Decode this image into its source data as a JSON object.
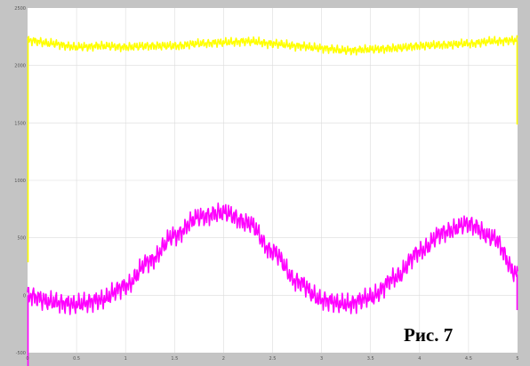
{
  "caption": "Рис. 7",
  "colors": {
    "frame": "#c4c4c4",
    "plot_background": "#ffffff",
    "grid": "#dcdcdc",
    "series_1": "#ffff00",
    "series_2": "#ff00ff",
    "tick_text": "#555555"
  },
  "chart_data": {
    "type": "line",
    "grid": true,
    "x_ticks": [
      "0",
      "0.5",
      "1",
      "1.5",
      "2",
      "2.5",
      "3",
      "3.5",
      "4",
      "4.5",
      "5"
    ],
    "y_ticks": [
      "-500",
      "0",
      "500",
      "1000",
      "1500",
      "2000",
      "2500"
    ],
    "xlim": [
      0,
      5
    ],
    "ylim": [
      -500,
      2500
    ],
    "series": [
      {
        "color": "#ffff00",
        "values": [
          [
            0,
            2220
          ],
          [
            0.25,
            2190
          ],
          [
            0.5,
            2160
          ],
          [
            0.75,
            2170
          ],
          [
            1,
            2160
          ],
          [
            1.25,
            2170
          ],
          [
            1.5,
            2170
          ],
          [
            1.75,
            2190
          ],
          [
            2,
            2200
          ],
          [
            2.25,
            2210
          ],
          [
            2.5,
            2190
          ],
          [
            2.75,
            2170
          ],
          [
            3,
            2150
          ],
          [
            3.25,
            2130
          ],
          [
            3.5,
            2140
          ],
          [
            3.75,
            2150
          ],
          [
            4,
            2170
          ],
          [
            4.25,
            2180
          ],
          [
            4.5,
            2190
          ],
          [
            4.75,
            2210
          ],
          [
            5,
            2220
          ]
        ]
      },
      {
        "color": "#ff00ff",
        "values": [
          [
            0,
            0
          ],
          [
            0.25,
            -60
          ],
          [
            0.5,
            -80
          ],
          [
            0.75,
            -40
          ],
          [
            1,
            80
          ],
          [
            1.25,
            300
          ],
          [
            1.5,
            520
          ],
          [
            1.75,
            680
          ],
          [
            2,
            720
          ],
          [
            2.25,
            630
          ],
          [
            2.5,
            380
          ],
          [
            2.75,
            120
          ],
          [
            3,
            -40
          ],
          [
            3.25,
            -80
          ],
          [
            3.5,
            -20
          ],
          [
            3.75,
            150
          ],
          [
            4,
            380
          ],
          [
            4.25,
            550
          ],
          [
            4.5,
            620
          ],
          [
            4.75,
            500
          ],
          [
            5,
            180
          ]
        ]
      }
    ]
  }
}
